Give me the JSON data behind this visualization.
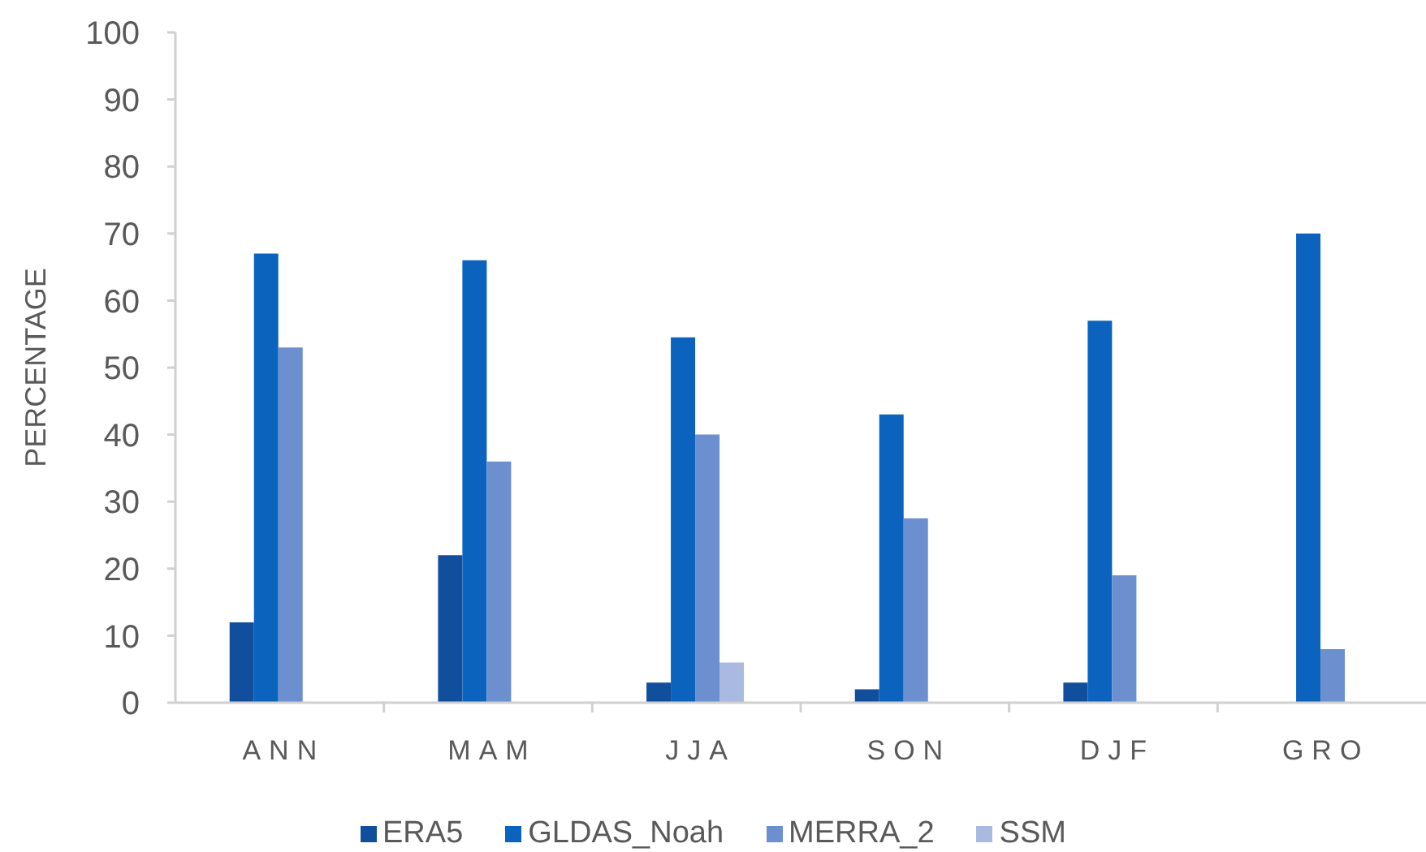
{
  "chart_data": {
    "type": "bar",
    "ylabel": "PERCENTAGE",
    "categories": [
      "ANN",
      "MAM",
      "JJA",
      "SON",
      "DJF",
      "GRO"
    ],
    "series": [
      {
        "name": "ERA5",
        "color": "#114f9c",
        "values": [
          12,
          22,
          3,
          2,
          3,
          null
        ]
      },
      {
        "name": "GLDAS_Noah",
        "color": "#0b63be",
        "values": [
          67,
          66,
          54.5,
          43,
          57,
          70
        ]
      },
      {
        "name": "MERRA_2",
        "color": "#6c8fd0",
        "values": [
          53,
          36,
          40,
          27.5,
          19,
          8
        ]
      },
      {
        "name": "SSM",
        "color": "#a9b9e0",
        "values": [
          null,
          null,
          6,
          null,
          null,
          null
        ]
      }
    ],
    "ylim": [
      0,
      100
    ],
    "yticks": [
      0,
      10,
      20,
      30,
      40,
      50,
      60,
      70,
      80,
      90,
      100
    ],
    "legend": "bottom"
  }
}
